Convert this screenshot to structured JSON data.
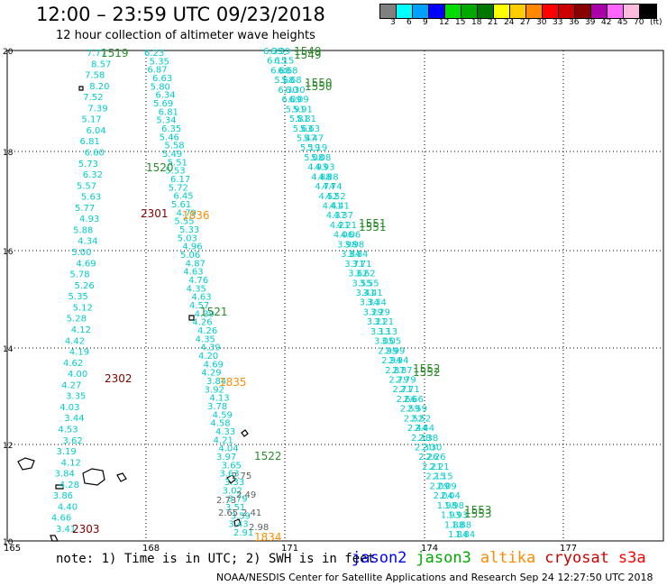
{
  "header": {
    "title": "12:00 – 23:59 UTC 09/23/2018",
    "subtitle": "12 hour collection of altimeter wave heights"
  },
  "colorbar": {
    "colors": [
      "#808080",
      "#00ffff",
      "#00a0ff",
      "#0000ff",
      "#00dd00",
      "#00aa00",
      "#007700",
      "#ffff00",
      "#ffcc00",
      "#ff8800",
      "#ff0000",
      "#cc0000",
      "#880000",
      "#aa00aa",
      "#ff66ff",
      "#ffbbdd",
      "#000000"
    ],
    "labels": [
      "3",
      "6",
      "9",
      "12",
      "15",
      "18",
      "21",
      "24",
      "27",
      "30",
      "33",
      "36",
      "39",
      "42",
      "45",
      "70",
      "(ft)"
    ]
  },
  "axes": {
    "lat_labels": [
      "20",
      "18",
      "16",
      "14",
      "12",
      "10"
    ],
    "lon_labels": [
      "165",
      "168",
      "171",
      "174",
      "177"
    ]
  },
  "track_points": {
    "colors": {
      "jason2": "#00cccc",
      "jason3": "#2a8c2a",
      "altika": "#ff8c00",
      "cryosat": "#800000",
      "s3a": "#ff0000",
      "other": "#606060"
    },
    "left_track_values": [
      "7.77",
      "8.57",
      "7.58",
      "8.20",
      "7.52",
      "7.39",
      "5.17",
      "6.04",
      "6.81",
      "6.60",
      "5.73",
      "6.32",
      "5.57",
      "5.63",
      "5.77",
      "4.93",
      "5.88",
      "4.34",
      "5.00",
      "4.69",
      "5.78",
      "5.26",
      "5.35",
      "5.12",
      "5.28",
      "4.12",
      "4.42",
      "4.19",
      "4.62",
      "4.00",
      "4.27",
      "3.35",
      "4.03",
      "3.44",
      "4.53",
      "3.62",
      "3.19",
      "4.12",
      "3.84",
      "4.28",
      "3.86",
      "4.40",
      "4.66",
      "3.41"
    ],
    "middle_track_values": [
      "6.23",
      "5.35",
      "6.87",
      "6.63",
      "5.80",
      "6.34",
      "5.69",
      "6.81",
      "5.34",
      "6.35",
      "5.46",
      "5.58",
      "5.49",
      "5.51",
      "5.53",
      "6.17",
      "5.72",
      "6.45",
      "5.61",
      "4.79",
      "5.55",
      "5.33",
      "5.03",
      "4.96",
      "5.06",
      "4.87",
      "4.63",
      "4.76",
      "4.35",
      "4.63",
      "4.57",
      "4.39",
      "4.26",
      "4.26",
      "4.35",
      "4.39",
      "4.20",
      "4.69",
      "4.29",
      "3.84",
      "3.92",
      "4.13",
      "3.78",
      "4.59",
      "4.58",
      "4.33",
      "4.21",
      "4.04",
      "3.97",
      "3.65",
      "3.63",
      "3.33",
      "3.02",
      "3.79",
      "3.51",
      "3.59",
      "3.43",
      "2.91"
    ],
    "right_track_values": [
      "6.39",
      "6.15",
      "6.68",
      "5.68",
      "6.30",
      "6.09",
      "5.91",
      "5.81",
      "5.63",
      "5.47",
      "5.19",
      "5.08",
      "4.93",
      "4.88",
      "4.74",
      "4.52",
      "4.41",
      "4.37",
      "4.21",
      "4.06",
      "3.98",
      "3.84",
      "3.71",
      "3.62",
      "3.55",
      "3.41",
      "3.34",
      "3.29",
      "3.21",
      "3.13",
      "3.05",
      "2.99",
      "2.94",
      "2.87",
      "2.79",
      "2.71",
      "2.66",
      "2.59",
      "2.52",
      "2.44",
      "2.38",
      "2.30",
      "2.26",
      "2.21",
      "2.15",
      "2.09",
      "2.04",
      "1.98",
      "1.93",
      "1.88",
      "1.84"
    ],
    "grey_values": [
      "2.75",
      "2.49",
      "2.73",
      "2.65",
      "2.41",
      "2.98"
    ]
  },
  "time_labels": [
    {
      "text": "1519",
      "sat": "jason3"
    },
    {
      "text": "1520",
      "sat": "jason3"
    },
    {
      "text": "2301",
      "sat": "cryosat"
    },
    {
      "text": "1836",
      "sat": "altika"
    },
    {
      "text": "1521",
      "sat": "jason3"
    },
    {
      "text": "2302",
      "sat": "cryosat"
    },
    {
      "text": "1835",
      "sat": "altika"
    },
    {
      "text": "1522",
      "sat": "jason3"
    },
    {
      "text": "2303",
      "sat": "cryosat"
    },
    {
      "text": "1834",
      "sat": "altika"
    },
    {
      "text": "1549",
      "sat": "jason3"
    },
    {
      "text": "1550",
      "sat": "jason3"
    },
    {
      "text": "1551",
      "sat": "jason3"
    },
    {
      "text": "1552",
      "sat": "jason3"
    },
    {
      "text": "1553",
      "sat": "jason3"
    }
  ],
  "footer": {
    "note": "note: 1) Time is in UTC; 2) SWH is in feet",
    "credit": "NOAA/NESDIS Center for Satellite Applications and Research   Sep 24 12:27:50 UTC 2018",
    "legend": [
      {
        "name": "jason2",
        "color": "#0000ff"
      },
      {
        "name": "jason3",
        "color": "#00aa00"
      },
      {
        "name": "altika",
        "color": "#ff8c00"
      },
      {
        "name": "cryosat",
        "color": "#cc0000"
      },
      {
        "name": "s3a",
        "color": "#ff0000"
      }
    ]
  }
}
